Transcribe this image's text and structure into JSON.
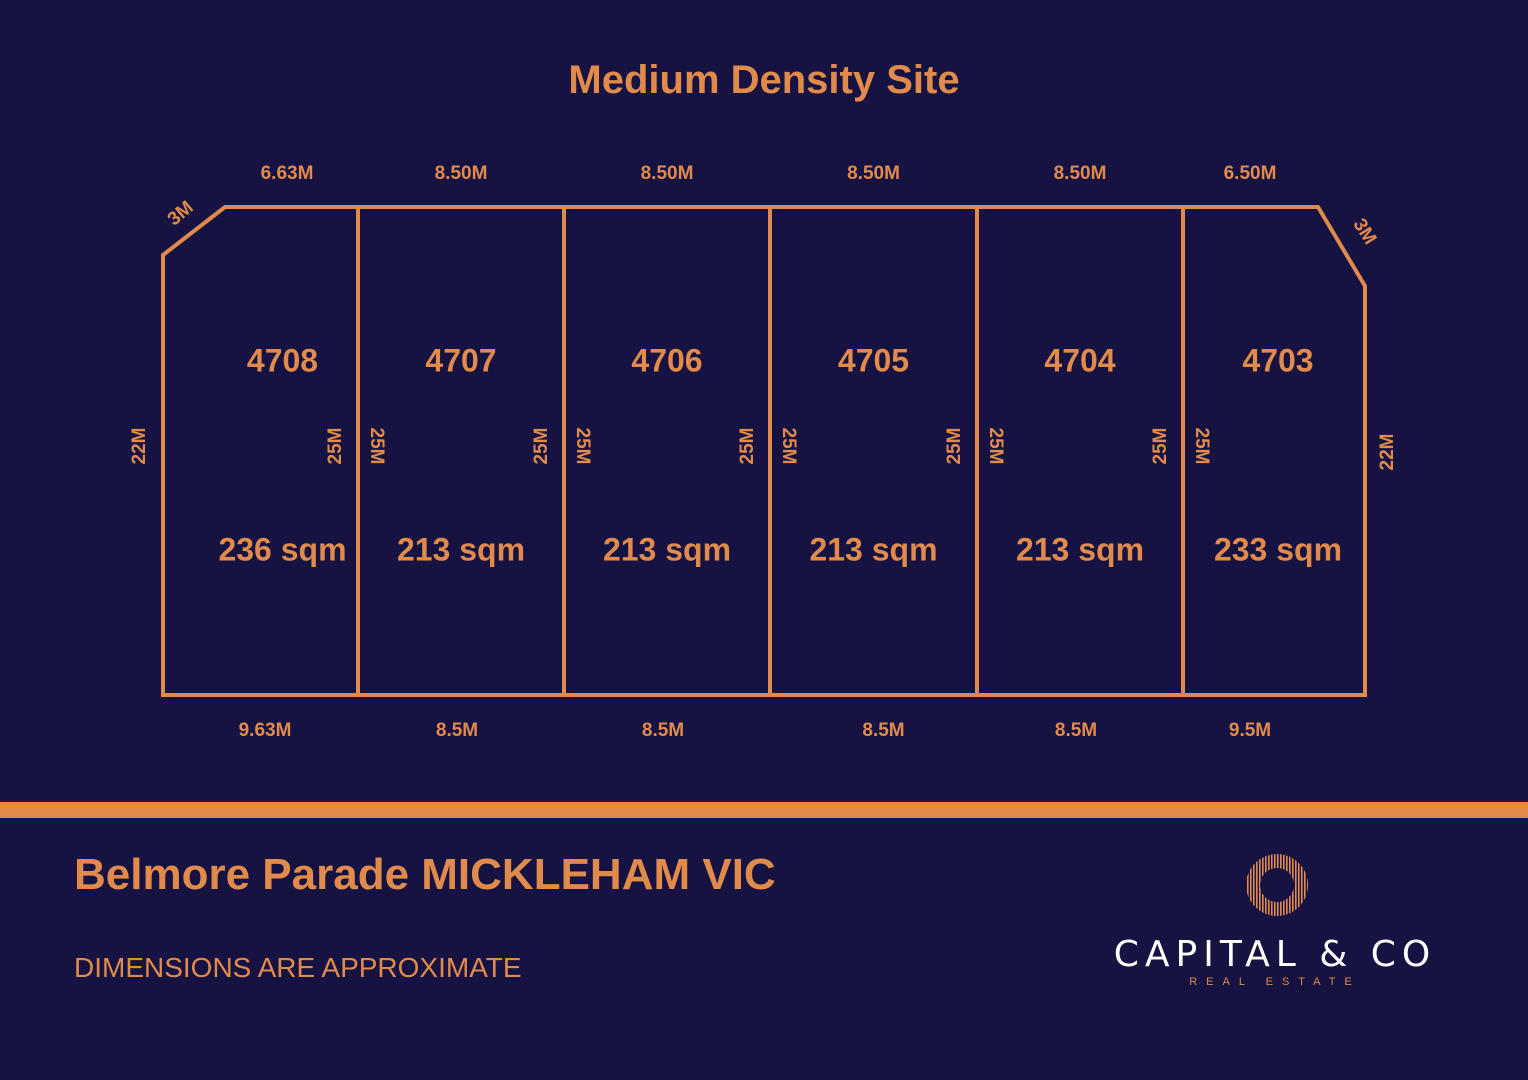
{
  "title": "Medium Density Site",
  "lots": [
    {
      "number": "4708",
      "area": "236 sqm",
      "left_side": "22M",
      "right_side": "25M",
      "front": "6.63M",
      "rear": "9.63M",
      "corner": "3M"
    },
    {
      "number": "4707",
      "area": "213 sqm",
      "left_side": "25M",
      "right_side": "25M",
      "front": "8.50M",
      "rear": "8.5M"
    },
    {
      "number": "4706",
      "area": "213 sqm",
      "left_side": "25M",
      "right_side": "25M",
      "front": "8.50M",
      "rear": "8.5M"
    },
    {
      "number": "4705",
      "area": "213 sqm",
      "left_side": "25M",
      "right_side": "25M",
      "front": "8.50M",
      "rear": "8.5M"
    },
    {
      "number": "4704",
      "area": "213 sqm",
      "left_side": "25M",
      "right_side": "25M",
      "front": "8.50M",
      "rear": "8.5M"
    },
    {
      "number": "4703",
      "area": "233 sqm",
      "left_side": "25M",
      "right_side": "22M",
      "front": "6.50M",
      "rear": "9.5M",
      "corner": "3M"
    }
  ],
  "address": "Belmore Parade MICKLEHAM VIC",
  "disclaimer": "DIMENSIONS ARE APPROXIMATE",
  "logo": {
    "name": "CAPITAL & CO",
    "subtitle": "REAL ESTATE",
    "icon": "ring-logo-icon"
  },
  "colors": {
    "background": "#161241",
    "accent": "#E08A4B",
    "logo_text": "#ffffff"
  }
}
